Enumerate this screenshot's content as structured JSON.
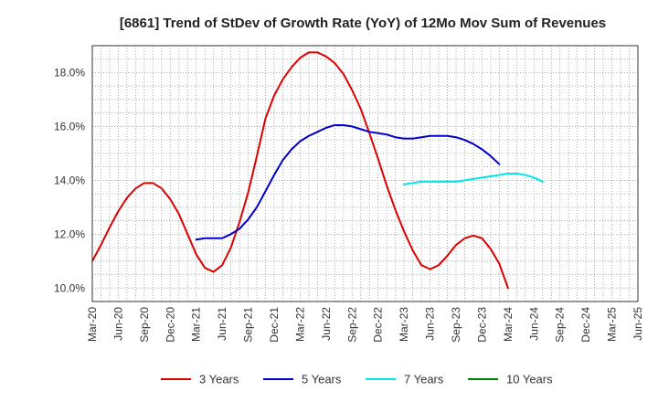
{
  "chart_data": {
    "type": "line",
    "title": "[6861]  Trend of StDev of Growth Rate (YoY) of 12Mo Mov Sum of Revenues",
    "xlabel": "",
    "ylabel": "",
    "ylim": [
      9.5,
      19.0
    ],
    "y_ticks": [
      10.0,
      12.0,
      14.0,
      16.0,
      18.0
    ],
    "y_tick_labels": [
      "10.0%",
      "12.0%",
      "14.0%",
      "16.0%",
      "18.0%"
    ],
    "x_tick_labels": [
      "Mar-20",
      "Jun-20",
      "Sep-20",
      "Dec-20",
      "Mar-21",
      "Jun-21",
      "Sep-21",
      "Dec-21",
      "Mar-22",
      "Jun-22",
      "Sep-22",
      "Dec-22",
      "Mar-23",
      "Jun-23",
      "Sep-23",
      "Dec-23",
      "Mar-24",
      "Jun-24",
      "Sep-24",
      "Dec-24",
      "Mar-25",
      "Jun-25"
    ],
    "grid": true,
    "legend_position": "bottom",
    "series": [
      {
        "name": "3 Years",
        "color": "#dd0000",
        "start_index": 0,
        "values": [
          11.0,
          11.6,
          12.25,
          12.85,
          13.35,
          13.7,
          13.9,
          13.9,
          13.7,
          13.3,
          12.75,
          12.0,
          11.25,
          10.75,
          10.6,
          10.85,
          11.5,
          12.45,
          13.55,
          14.9,
          16.3,
          17.15,
          17.75,
          18.2,
          18.55,
          18.75,
          18.75,
          18.6,
          18.35,
          17.95,
          17.35,
          16.65,
          15.75,
          14.8,
          13.8,
          12.9,
          12.1,
          11.4,
          10.85,
          10.7,
          10.85,
          11.2,
          11.6,
          11.85,
          11.95,
          11.85,
          11.45,
          10.9,
          10.0
        ]
      },
      {
        "name": "5 Years",
        "color": "#0000cc",
        "start_index": 12,
        "values": [
          11.8,
          11.85,
          11.85,
          11.85,
          12.0,
          12.2,
          12.55,
          13.0,
          13.6,
          14.2,
          14.75,
          15.15,
          15.45,
          15.65,
          15.8,
          15.95,
          16.05,
          16.05,
          16.0,
          15.9,
          15.8,
          15.75,
          15.7,
          15.6,
          15.55,
          15.55,
          15.6,
          15.65,
          15.65,
          15.65,
          15.6,
          15.5,
          15.35,
          15.15,
          14.9,
          14.6
        ]
      },
      {
        "name": "7 Years",
        "color": "#00e5e5",
        "start_index": 36,
        "values": [
          13.85,
          13.9,
          13.95,
          13.95,
          13.95,
          13.95,
          13.95,
          14.0,
          14.05,
          14.1,
          14.15,
          14.2,
          14.25,
          14.25,
          14.2,
          14.1,
          13.95
        ]
      },
      {
        "name": "10 Years",
        "color": "#008000",
        "start_index": 0,
        "values": []
      }
    ]
  }
}
